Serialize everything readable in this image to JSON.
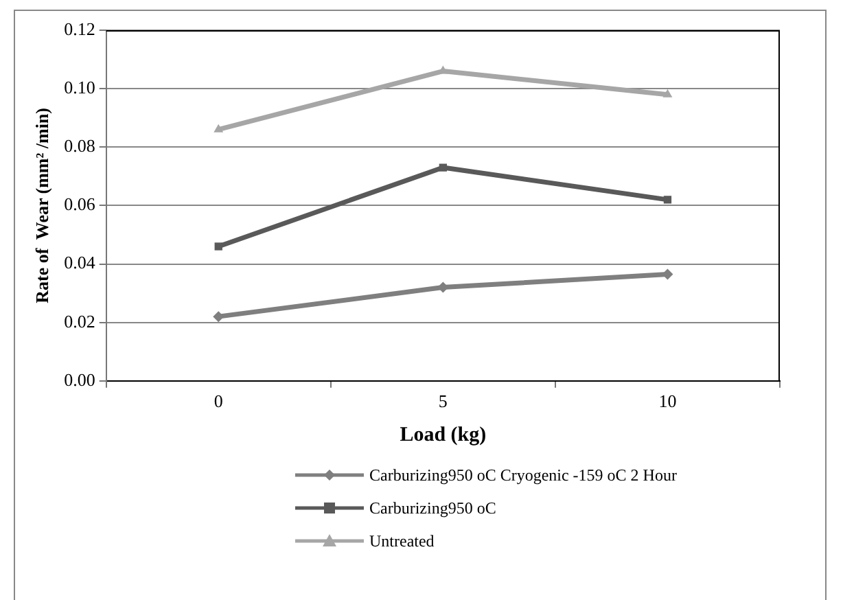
{
  "chart_data": {
    "type": "line",
    "xlabel": "Load (kg)",
    "ylabel": "Rate of  Wear (mm² /min)",
    "categories": [
      "0",
      "5",
      "10"
    ],
    "series": [
      {
        "name": "Carburizing950 oC Cryogenic -159 oC 2 Hour",
        "color": "#7f7f7f",
        "marker": "diamond",
        "values": [
          0.022,
          0.032,
          0.0365
        ]
      },
      {
        "name": "Carburizing950 oC",
        "color": "#595959",
        "marker": "square",
        "values": [
          0.046,
          0.073,
          0.062
        ]
      },
      {
        "name": "Untreated",
        "color": "#a6a6a6",
        "marker": "triangle",
        "values": [
          0.086,
          0.106,
          0.098
        ]
      }
    ],
    "ylim": [
      0,
      0.12
    ],
    "yticks": [
      {
        "value": 0,
        "label": "0.00"
      },
      {
        "value": 0.02,
        "label": "0.02"
      },
      {
        "value": 0.04,
        "label": "0.04"
      },
      {
        "value": 0.06,
        "label": "0.06"
      },
      {
        "value": 0.08,
        "label": "0.08"
      },
      {
        "value": 0.1,
        "label": "0.10"
      },
      {
        "value": 0.12,
        "label": "0.12"
      }
    ],
    "grid": "y",
    "legend": "bottom",
    "line_style": "solid"
  }
}
